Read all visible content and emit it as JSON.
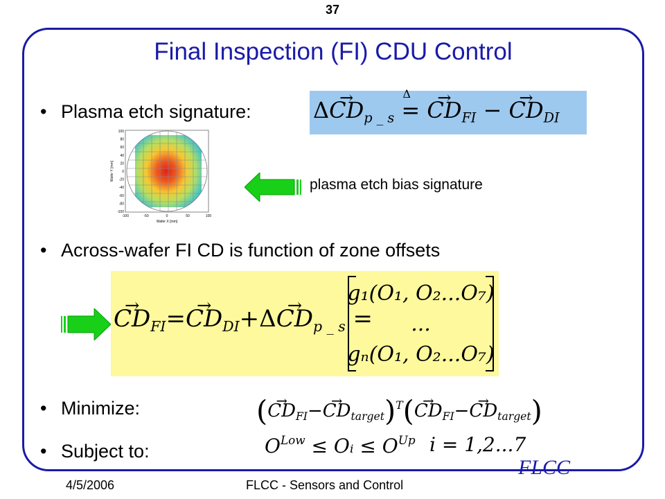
{
  "page_number": "37",
  "title": "Final Inspection (FI) CDU Control",
  "bullets": {
    "b1": "Plasma etch signature:",
    "b2": "Across-wafer FI CD is function of zone offsets",
    "b3": "Minimize:",
    "b4": "Subject to:"
  },
  "bullet_symbol": "•",
  "plasma_label": "plasma etch bias signature",
  "plot": {
    "ylabel": "Wafer Y [mm]",
    "xlabel": "Wafer X [mm]",
    "yticks": [
      "100",
      "80",
      "60",
      "40",
      "20",
      "0",
      "-20",
      "-40",
      "-60",
      "-80",
      "-100"
    ],
    "xticks": [
      "-100",
      "-50",
      "0",
      "50",
      "100"
    ]
  },
  "eq": {
    "delta": "Δ",
    "cd": "CD",
    "ps": "p _ s",
    "fi": "FI",
    "di": "DI",
    "target": "target",
    "eq_sign": "=",
    "minus": "−",
    "plus": "+",
    "g1": "g₁(O₁, O₂...O₇)",
    "dots": "...",
    "gn": "gₙ(O₁, O₂...O₇)",
    "T": "T",
    "O": "O",
    "low": "Low",
    "up": "Up",
    "oi": "Oᵢ",
    "leq": "≤",
    "index": "i = 1,2...7"
  },
  "footer": {
    "date": "4/5/2006",
    "center": "FLCC - Sensors and Control",
    "brand": "FLCC"
  },
  "colors": {
    "title": "#1a1aa8",
    "frame": "#1a1aa8",
    "eq1_bg": "#9ec9ef",
    "eq2_bg": "#fdf99c",
    "arrow": "#18d018"
  }
}
